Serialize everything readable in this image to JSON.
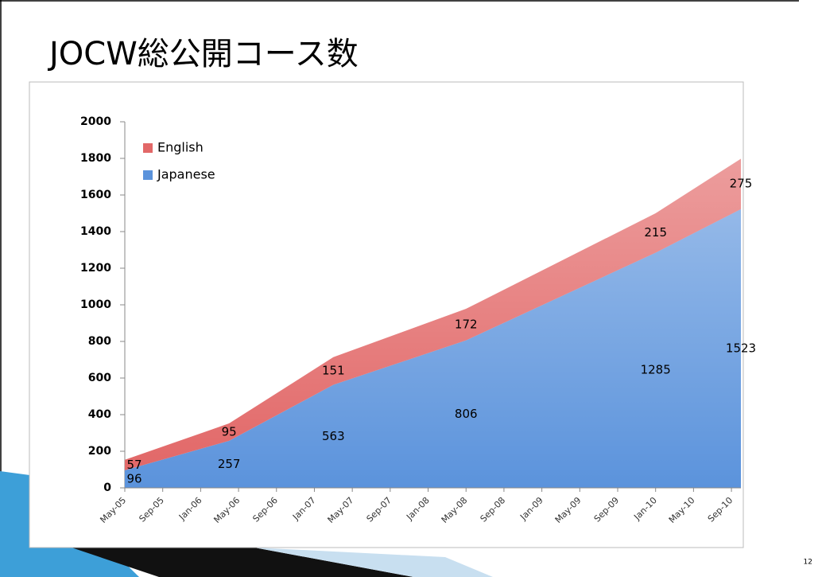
{
  "title": "JOCW総公開コース数",
  "slide_number": "12",
  "chart_data": {
    "type": "area",
    "stacked": true,
    "x": [
      "2005-05",
      "2006-04",
      "2007-03",
      "2008-05",
      "2010-01",
      "2010-10"
    ],
    "series": [
      {
        "name": "Japanese",
        "color": "#5b93dc",
        "values": [
          96,
          257,
          563,
          806,
          1285,
          1523
        ]
      },
      {
        "name": "English",
        "color": "#e26868",
        "values": [
          57,
          95,
          151,
          172,
          215,
          275
        ]
      }
    ],
    "xlim": [
      "2005-05",
      "2010-10"
    ],
    "xticks": [
      {
        "value": "2005-05",
        "label": "May-05"
      },
      {
        "value": "2005-09",
        "label": "Sep-05"
      },
      {
        "value": "2006-01",
        "label": "Jan-06"
      },
      {
        "value": "2006-05",
        "label": "May-06"
      },
      {
        "value": "2006-09",
        "label": "Sep-06"
      },
      {
        "value": "2007-01",
        "label": "Jan-07"
      },
      {
        "value": "2007-05",
        "label": "May-07"
      },
      {
        "value": "2007-09",
        "label": "Sep-07"
      },
      {
        "value": "2008-01",
        "label": "Jan-08"
      },
      {
        "value": "2008-05",
        "label": "May-08"
      },
      {
        "value": "2008-09",
        "label": "Sep-08"
      },
      {
        "value": "2009-01",
        "label": "Jan-09"
      },
      {
        "value": "2009-05",
        "label": "May-09"
      },
      {
        "value": "2009-09",
        "label": "Sep-09"
      },
      {
        "value": "2010-01",
        "label": "Jan-10"
      },
      {
        "value": "2010-05",
        "label": "May-10"
      },
      {
        "value": "2010-09",
        "label": "Sep-10"
      }
    ],
    "ylim": [
      0,
      2000
    ],
    "yticks": [
      0,
      200,
      400,
      600,
      800,
      1000,
      1200,
      1400,
      1600,
      1800,
      2000
    ],
    "legend": "upper left",
    "data_labels": true
  }
}
